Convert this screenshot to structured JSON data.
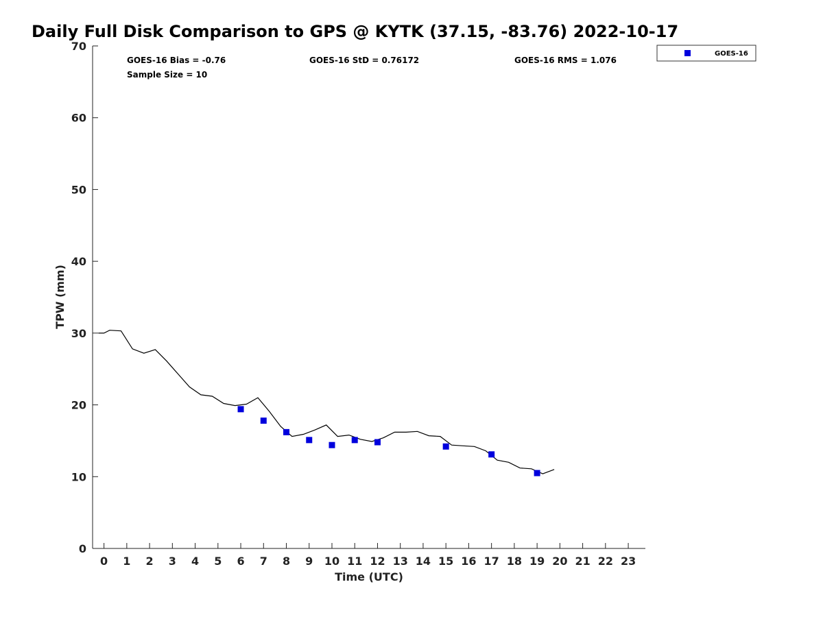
{
  "chart_data": {
    "type": "scatter",
    "title": "Daily Full Disk Comparison to GPS @ KYTK (37.15, -83.76) 2022-10-17",
    "xlabel": "Time (UTC)",
    "ylabel": "TPW (mm)",
    "xlim": [
      -0.5,
      23.75
    ],
    "ylim": [
      0,
      70
    ],
    "x_ticks": [
      "0",
      "1",
      "2",
      "3",
      "4",
      "5",
      "6",
      "7",
      "8",
      "9",
      "10",
      "11",
      "12",
      "13",
      "14",
      "15",
      "16",
      "17",
      "18",
      "19",
      "20",
      "21",
      "22",
      "23"
    ],
    "y_ticks": [
      "0",
      "10",
      "20",
      "30",
      "40",
      "50",
      "60",
      "70"
    ],
    "grid": false,
    "legend_position": "top-right",
    "stats": {
      "bias": "GOES-16 Bias = -0.76",
      "std": "GOES-16 StD = 0.76172",
      "rms": "GOES-16 RMS = 1.076",
      "sample_size": "Sample Size = 10"
    },
    "series": [
      {
        "name": "GOES-16",
        "kind": "markers",
        "color": "#0000dd",
        "x": [
          6,
          7,
          8,
          9,
          10,
          11,
          12,
          15,
          17,
          19
        ],
        "y": [
          19.4,
          17.8,
          16.2,
          15.1,
          14.4,
          15.1,
          14.8,
          14.2,
          13.1,
          10.5
        ]
      },
      {
        "kind": "line",
        "color": "#000000",
        "x": [
          -0.25,
          0,
          0.25,
          0.75,
          1.25,
          1.75,
          2.25,
          2.75,
          3.25,
          3.75,
          4.25,
          4.75,
          5.25,
          5.75,
          6.25,
          6.75,
          7.25,
          7.75,
          8.25,
          8.75,
          9.25,
          9.75,
          10.25,
          10.75,
          11.25,
          11.75,
          12.25,
          12.75,
          13.25,
          13.75,
          14.25,
          14.75,
          15.25,
          15.75,
          16.25,
          16.75,
          17.25,
          17.75,
          18.25,
          18.75,
          19.25,
          19.75
        ],
        "y": [
          30.0,
          30.0,
          30.4,
          30.3,
          27.8,
          27.2,
          27.7,
          26.1,
          24.3,
          22.5,
          21.4,
          21.2,
          20.2,
          19.9,
          20.1,
          21.0,
          19.1,
          17.0,
          15.6,
          15.9,
          16.5,
          17.2,
          15.6,
          15.8,
          15.2,
          14.9,
          15.4,
          16.2,
          16.2,
          16.3,
          15.7,
          15.6,
          14.4,
          14.3,
          14.2,
          13.6,
          12.3,
          12.0,
          11.2,
          11.1,
          10.4,
          11.0
        ]
      }
    ]
  }
}
